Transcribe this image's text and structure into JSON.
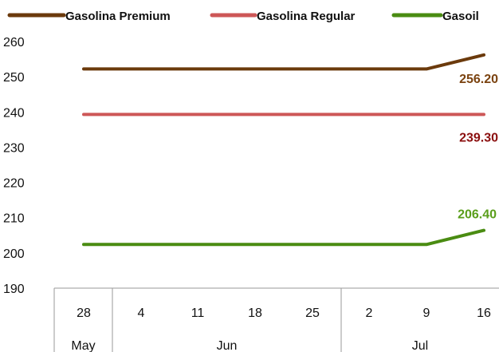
{
  "chart_data": {
    "type": "line",
    "title": "",
    "xlabel": "",
    "ylabel": "",
    "ylim": [
      190,
      260
    ],
    "yticks": [
      190,
      200,
      210,
      220,
      230,
      240,
      250,
      260
    ],
    "ytick_labels": [
      "190",
      "200",
      "210",
      "220",
      "230",
      "240",
      "250",
      "260"
    ],
    "categories": [
      "28",
      "4",
      "11",
      "18",
      "25",
      "2",
      "9",
      "16"
    ],
    "groups": [
      {
        "label": "May",
        "start": 0,
        "end": 0
      },
      {
        "label": "Jun",
        "start": 1,
        "end": 4
      },
      {
        "label": "Jul",
        "start": 5,
        "end": 7
      }
    ],
    "legend_position": "top",
    "grid": false,
    "series": [
      {
        "name": "Gasolina Premium",
        "color": "#6b3a0c",
        "values": [
          252.2,
          252.2,
          252.2,
          252.2,
          252.2,
          252.2,
          252.2,
          256.2
        ],
        "last_label": "256.20",
        "label_color": "#7b4310"
      },
      {
        "name": "Gasolina Regular",
        "color": "#cd5757",
        "values": [
          239.3,
          239.3,
          239.3,
          239.3,
          239.3,
          239.3,
          239.3,
          239.3
        ],
        "last_label": "239.30",
        "label_color": "#8b0f0f"
      },
      {
        "name": "Gasoil",
        "color": "#4a8c12",
        "values": [
          202.4,
          202.4,
          202.4,
          202.4,
          202.4,
          202.4,
          202.4,
          206.4
        ],
        "last_label": "206.40",
        "label_color": "#5a9e1b"
      }
    ]
  }
}
